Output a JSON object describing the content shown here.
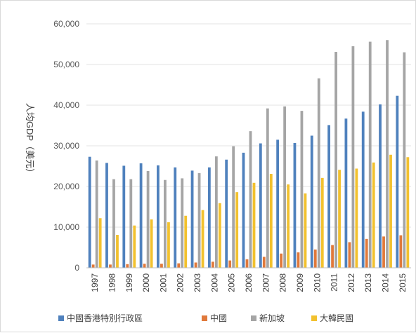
{
  "chart_data": {
    "type": "bar",
    "ylabel": "人均GDP（美元）",
    "ylim": [
      0,
      60000
    ],
    "yticks": [
      0,
      10000,
      20000,
      30000,
      40000,
      50000,
      60000
    ],
    "ytick_labels": [
      "0",
      "10,000",
      "20,000",
      "30,000",
      "40,000",
      "50,000",
      "60,000"
    ],
    "grid": "horizontal",
    "legend": "bottom",
    "categories": [
      "1997",
      "1998",
      "1999",
      "2000",
      "2001",
      "2002",
      "2003",
      "2004",
      "2005",
      "2006",
      "2007",
      "2008",
      "2009",
      "2010",
      "2011",
      "2012",
      "2013",
      "2014",
      "2015"
    ],
    "series": [
      {
        "name": "中國香港特別行政區",
        "color": "#4f81bd",
        "values": [
          27300,
          25800,
          25100,
          25700,
          25200,
          24700,
          23900,
          24700,
          26600,
          28300,
          30600,
          31500,
          30700,
          32500,
          35100,
          36700,
          38400,
          40200,
          42300
        ]
      },
      {
        "name": "中國",
        "color": "#e0793b",
        "values": [
          800,
          800,
          900,
          1000,
          1000,
          1100,
          1300,
          1500,
          1800,
          2100,
          2700,
          3500,
          3800,
          4500,
          5600,
          6300,
          7100,
          7700,
          8000
        ]
      },
      {
        "name": "新加坡",
        "color": "#a5a5a5",
        "values": [
          26400,
          21800,
          21800,
          23800,
          21600,
          22000,
          23300,
          27400,
          29900,
          33600,
          39200,
          39700,
          38600,
          46600,
          53100,
          54500,
          55600,
          56000,
          53000
        ]
      },
      {
        "name": "大韓民國",
        "color": "#f2c12e",
        "values": [
          12200,
          8100,
          10400,
          11900,
          11200,
          12800,
          14200,
          15900,
          18600,
          20900,
          23100,
          20500,
          18300,
          22100,
          24100,
          24400,
          25900,
          27800,
          27200
        ]
      }
    ]
  }
}
